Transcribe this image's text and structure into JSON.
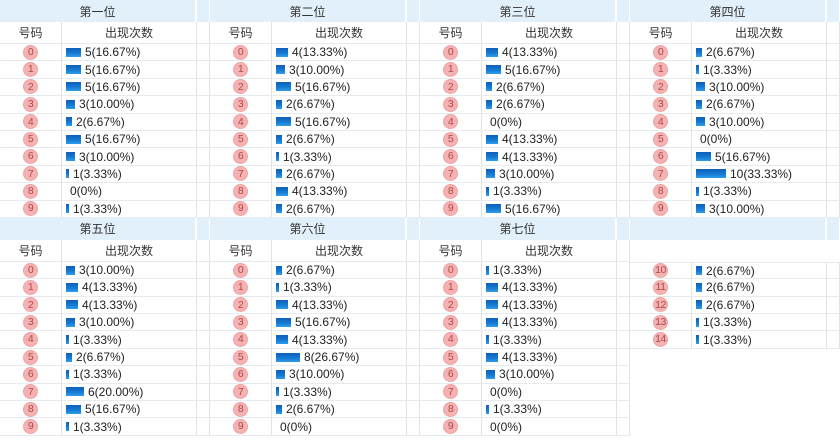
{
  "page": {
    "number_header": "号码",
    "count_header": "出现次数"
  },
  "colors": {
    "title_bg": "#e1f0fa",
    "bar_top": "#0f5fb8",
    "bar_bottom": "#2f9ce9",
    "badge_bg": "#f6b2b2",
    "badge_text": "#a94a4a"
  },
  "panels": [
    {
      "title": "第一位",
      "show_headers": true,
      "rows": [
        {
          "num": "0",
          "count": 5,
          "label": "5(16.67%)"
        },
        {
          "num": "1",
          "count": 5,
          "label": "5(16.67%)"
        },
        {
          "num": "2",
          "count": 5,
          "label": "5(16.67%)"
        },
        {
          "num": "3",
          "count": 3,
          "label": "3(10.00%)"
        },
        {
          "num": "4",
          "count": 2,
          "label": "2(6.67%)"
        },
        {
          "num": "5",
          "count": 5,
          "label": "5(16.67%)"
        },
        {
          "num": "6",
          "count": 3,
          "label": "3(10.00%)"
        },
        {
          "num": "7",
          "count": 1,
          "label": "1(3.33%)"
        },
        {
          "num": "8",
          "count": 0,
          "label": "0(0%)"
        },
        {
          "num": "9",
          "count": 1,
          "label": "1(3.33%)"
        }
      ]
    },
    {
      "title": "第二位",
      "show_headers": true,
      "rows": [
        {
          "num": "0",
          "count": 4,
          "label": "4(13.33%)"
        },
        {
          "num": "1",
          "count": 3,
          "label": "3(10.00%)"
        },
        {
          "num": "2",
          "count": 5,
          "label": "5(16.67%)"
        },
        {
          "num": "3",
          "count": 2,
          "label": "2(6.67%)"
        },
        {
          "num": "4",
          "count": 5,
          "label": "5(16.67%)"
        },
        {
          "num": "5",
          "count": 2,
          "label": "2(6.67%)"
        },
        {
          "num": "6",
          "count": 1,
          "label": "1(3.33%)"
        },
        {
          "num": "7",
          "count": 2,
          "label": "2(6.67%)"
        },
        {
          "num": "8",
          "count": 4,
          "label": "4(13.33%)"
        },
        {
          "num": "9",
          "count": 2,
          "label": "2(6.67%)"
        }
      ]
    },
    {
      "title": "第三位",
      "show_headers": true,
      "rows": [
        {
          "num": "0",
          "count": 4,
          "label": "4(13.33%)"
        },
        {
          "num": "1",
          "count": 5,
          "label": "5(16.67%)"
        },
        {
          "num": "2",
          "count": 2,
          "label": "2(6.67%)"
        },
        {
          "num": "3",
          "count": 2,
          "label": "2(6.67%)"
        },
        {
          "num": "4",
          "count": 0,
          "label": "0(0%)"
        },
        {
          "num": "5",
          "count": 4,
          "label": "4(13.33%)"
        },
        {
          "num": "6",
          "count": 4,
          "label": "4(13.33%)"
        },
        {
          "num": "7",
          "count": 3,
          "label": "3(10.00%)"
        },
        {
          "num": "8",
          "count": 1,
          "label": "1(3.33%)"
        },
        {
          "num": "9",
          "count": 5,
          "label": "5(16.67%)"
        }
      ]
    },
    {
      "title": "第四位",
      "show_headers": true,
      "rows": [
        {
          "num": "0",
          "count": 2,
          "label": "2(6.67%)"
        },
        {
          "num": "1",
          "count": 1,
          "label": "1(3.33%)"
        },
        {
          "num": "2",
          "count": 3,
          "label": "3(10.00%)"
        },
        {
          "num": "3",
          "count": 2,
          "label": "2(6.67%)"
        },
        {
          "num": "4",
          "count": 3,
          "label": "3(10.00%)"
        },
        {
          "num": "5",
          "count": 0,
          "label": "0(0%)"
        },
        {
          "num": "6",
          "count": 5,
          "label": "5(16.67%)"
        },
        {
          "num": "7",
          "count": 10,
          "label": "10(33.33%)"
        },
        {
          "num": "8",
          "count": 1,
          "label": "1(3.33%)"
        },
        {
          "num": "9",
          "count": 3,
          "label": "3(10.00%)"
        }
      ]
    },
    {
      "title": "第五位",
      "show_headers": true,
      "rows": [
        {
          "num": "0",
          "count": 3,
          "label": "3(10.00%)"
        },
        {
          "num": "1",
          "count": 4,
          "label": "4(13.33%)"
        },
        {
          "num": "2",
          "count": 4,
          "label": "4(13.33%)"
        },
        {
          "num": "3",
          "count": 3,
          "label": "3(10.00%)"
        },
        {
          "num": "4",
          "count": 1,
          "label": "1(3.33%)"
        },
        {
          "num": "5",
          "count": 2,
          "label": "2(6.67%)"
        },
        {
          "num": "6",
          "count": 1,
          "label": "1(3.33%)"
        },
        {
          "num": "7",
          "count": 6,
          "label": "6(20.00%)"
        },
        {
          "num": "8",
          "count": 5,
          "label": "5(16.67%)"
        },
        {
          "num": "9",
          "count": 1,
          "label": "1(3.33%)"
        }
      ]
    },
    {
      "title": "第六位",
      "show_headers": true,
      "rows": [
        {
          "num": "0",
          "count": 2,
          "label": "2(6.67%)"
        },
        {
          "num": "1",
          "count": 1,
          "label": "1(3.33%)"
        },
        {
          "num": "2",
          "count": 4,
          "label": "4(13.33%)"
        },
        {
          "num": "3",
          "count": 5,
          "label": "5(16.67%)"
        },
        {
          "num": "4",
          "count": 4,
          "label": "4(13.33%)"
        },
        {
          "num": "5",
          "count": 8,
          "label": "8(26.67%)"
        },
        {
          "num": "6",
          "count": 3,
          "label": "3(10.00%)"
        },
        {
          "num": "7",
          "count": 1,
          "label": "1(3.33%)"
        },
        {
          "num": "8",
          "count": 2,
          "label": "2(6.67%)"
        },
        {
          "num": "9",
          "count": 0,
          "label": "0(0%)"
        }
      ]
    },
    {
      "title": "第七位",
      "show_headers": true,
      "rows": [
        {
          "num": "0",
          "count": 1,
          "label": "1(3.33%)"
        },
        {
          "num": "1",
          "count": 4,
          "label": "4(13.33%)"
        },
        {
          "num": "2",
          "count": 4,
          "label": "4(13.33%)"
        },
        {
          "num": "3",
          "count": 4,
          "label": "4(13.33%)"
        },
        {
          "num": "4",
          "count": 1,
          "label": "1(3.33%)"
        },
        {
          "num": "5",
          "count": 4,
          "label": "4(13.33%)"
        },
        {
          "num": "6",
          "count": 3,
          "label": "3(10.00%)"
        },
        {
          "num": "7",
          "count": 0,
          "label": "0(0%)"
        },
        {
          "num": "8",
          "count": 1,
          "label": "1(3.33%)"
        },
        {
          "num": "9",
          "count": 0,
          "label": "0(0%)"
        }
      ]
    },
    {
      "title": "",
      "show_headers": false,
      "rows": [
        {
          "num": "10",
          "count": 2,
          "label": "2(6.67%)"
        },
        {
          "num": "11",
          "count": 2,
          "label": "2(6.67%)"
        },
        {
          "num": "12",
          "count": 2,
          "label": "2(6.67%)"
        },
        {
          "num": "13",
          "count": 1,
          "label": "1(3.33%)"
        },
        {
          "num": "14",
          "count": 1,
          "label": "1(3.33%)"
        }
      ]
    }
  ]
}
